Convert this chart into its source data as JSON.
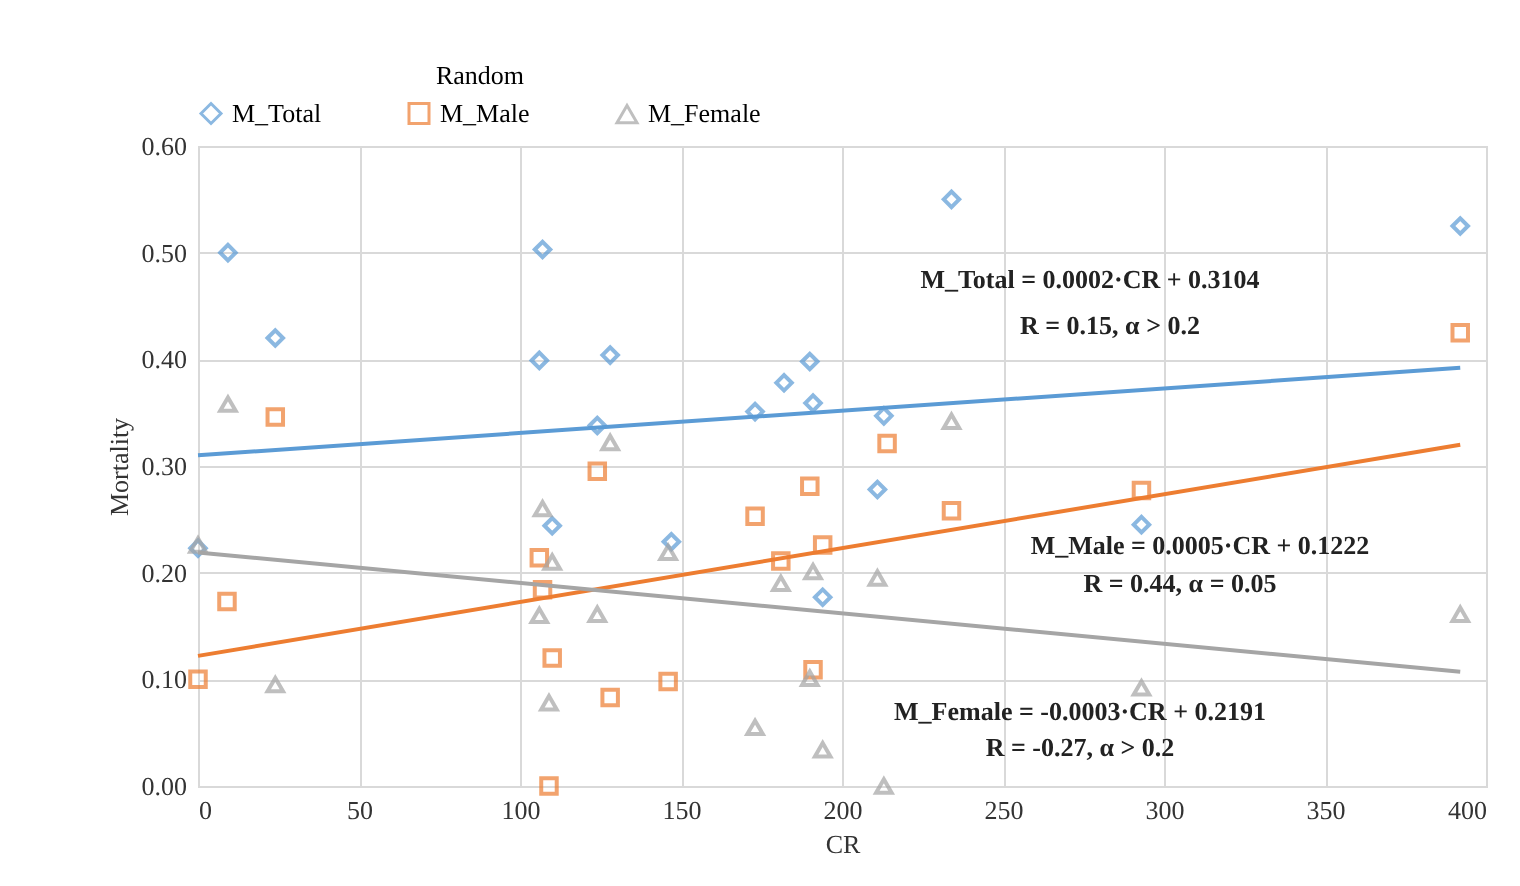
{
  "chart_data": {
    "type": "scatter",
    "legend_title": "Random",
    "xlabel": "CR",
    "ylabel": "Mortality",
    "legend": "top",
    "grid": true,
    "xlim": [
      0,
      400
    ],
    "xticks": [
      0,
      50,
      100,
      150,
      200,
      250,
      300,
      350,
      400
    ],
    "ylim": [
      0,
      0.6
    ],
    "yticks": [
      {
        "value": 0,
        "label": "0.00"
      },
      {
        "value": 0.1,
        "label": "0.10"
      },
      {
        "value": 0.2,
        "label": "0.20"
      },
      {
        "value": 0.3,
        "label": "0.30"
      },
      {
        "value": 0.4,
        "label": "0.40"
      },
      {
        "value": 0.5,
        "label": "0.50"
      },
      {
        "value": 0.6,
        "label": "0.60"
      }
    ],
    "series": [
      {
        "name": "M_Total",
        "color": "#5b9bd5",
        "marker": "diamond",
        "x": [
          9.3,
          24,
          107,
          106,
          128,
          124,
          110,
          0,
          234,
          190,
          182,
          191,
          173,
          213,
          211,
          147,
          194,
          392,
          293
        ],
        "values": [
          0.5,
          0.42,
          0.503,
          0.399,
          0.404,
          0.338,
          0.244,
          0.223,
          0.55,
          0.398,
          0.378,
          0.359,
          0.351,
          0.347,
          0.278,
          0.229,
          0.177,
          0.525,
          0.245
        ]
      },
      {
        "name": "M_Male",
        "color": "#ed7d31",
        "marker": "square",
        "x": [
          24,
          9,
          0,
          124,
          106,
          107,
          110,
          128,
          109,
          214,
          190,
          173,
          234,
          194,
          181,
          191,
          146,
          392,
          293
        ],
        "values": [
          0.346,
          0.173,
          0.1,
          0.295,
          0.214,
          0.184,
          0.12,
          0.083,
          0,
          0.321,
          0.281,
          0.253,
          0.258,
          0.226,
          0.211,
          0.109,
          0.098,
          0.425,
          0.277
        ]
      },
      {
        "name": "M_Female",
        "color": "#a5a5a5",
        "marker": "triangle",
        "x": [
          9.3,
          0,
          24,
          128,
          107,
          110,
          106,
          124,
          109,
          234,
          146,
          181,
          191,
          211,
          173,
          194,
          190,
          213,
          392,
          293
        ],
        "values": [
          0.358,
          0.226,
          0.095,
          0.322,
          0.26,
          0.21,
          0.16,
          0.161,
          0.078,
          0.342,
          0.219,
          0.19,
          0.201,
          0.195,
          0.055,
          0.034,
          0.101,
          0,
          0.161,
          0.092
        ]
      },
      {
        "type": "line",
        "color": "#5b9bd5",
        "x": [
          0,
          392
        ],
        "values": [
          0.31,
          0.392
        ]
      },
      {
        "type": "line",
        "color": "#ed7d31",
        "x": [
          0,
          392
        ],
        "values": [
          0.122,
          0.32
        ]
      },
      {
        "type": "line",
        "color": "#a5a5a5",
        "x": [
          0,
          392
        ],
        "values": [
          0.219,
          0.107
        ]
      }
    ],
    "annotations": [
      "M_Total = 0.0002·CR + 0.3104",
      "R = 0.15, α > 0.2",
      "M_Male = 0.0005·CR + 0.1222",
      "R = 0.44, α = 0.05",
      "M_Female = -0.0003·CR + 0.2191",
      "R = -0.27, α > 0.2"
    ]
  }
}
